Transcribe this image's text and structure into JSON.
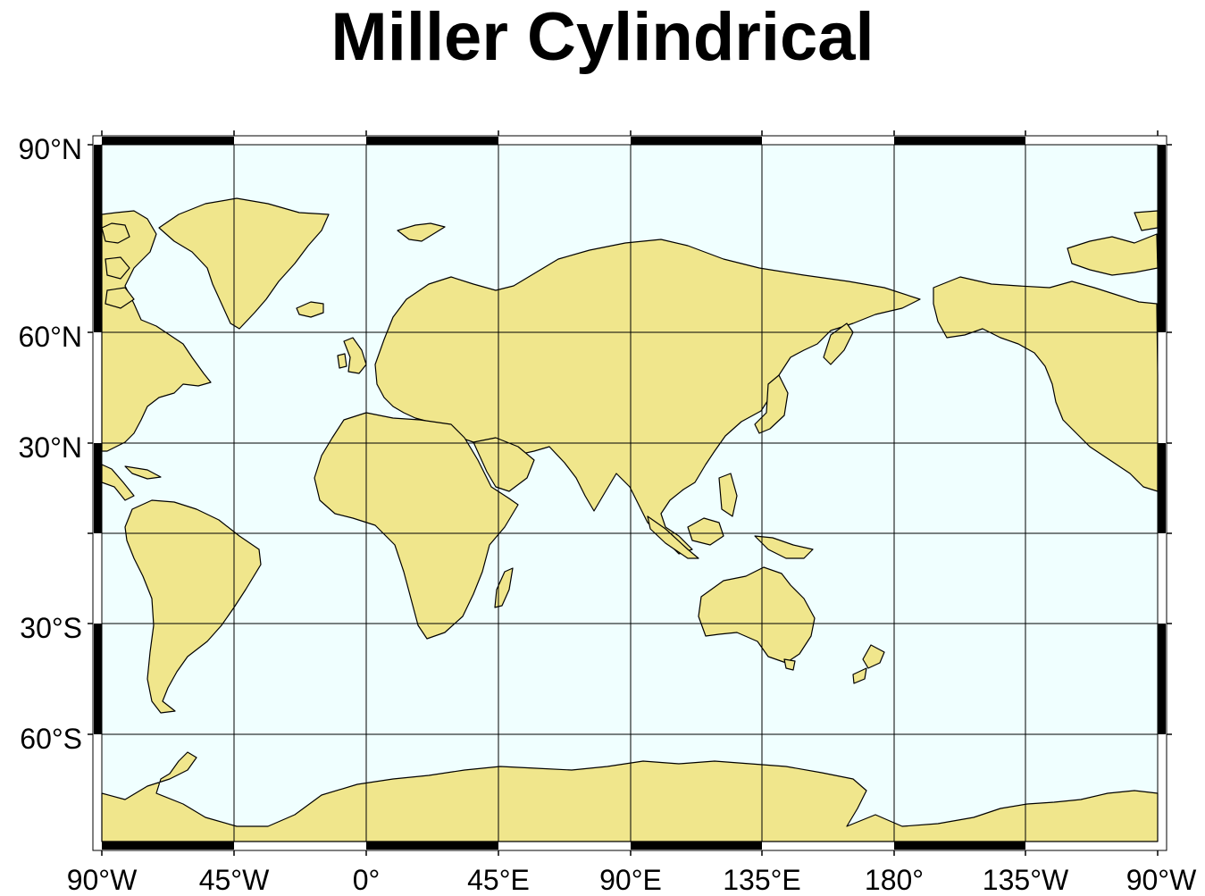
{
  "title": "Miller Cylindrical",
  "projection": "miller-cylindrical",
  "central_meridian_label": "90°E",
  "colors": {
    "ocean": "#f0ffff",
    "land": "#f0e68c",
    "coastline": "#000000",
    "grid": "#000000",
    "frame_black": "#000000",
    "frame_white": "#ffffff"
  },
  "lon_labels": [
    "90°W",
    "45°W",
    "0°",
    "45°E",
    "90°E",
    "135°E",
    "180°",
    "135°W",
    "90°W"
  ],
  "lat_labels": [
    "90°N",
    "60°N",
    "30°N",
    "30°S",
    "60°S"
  ]
}
